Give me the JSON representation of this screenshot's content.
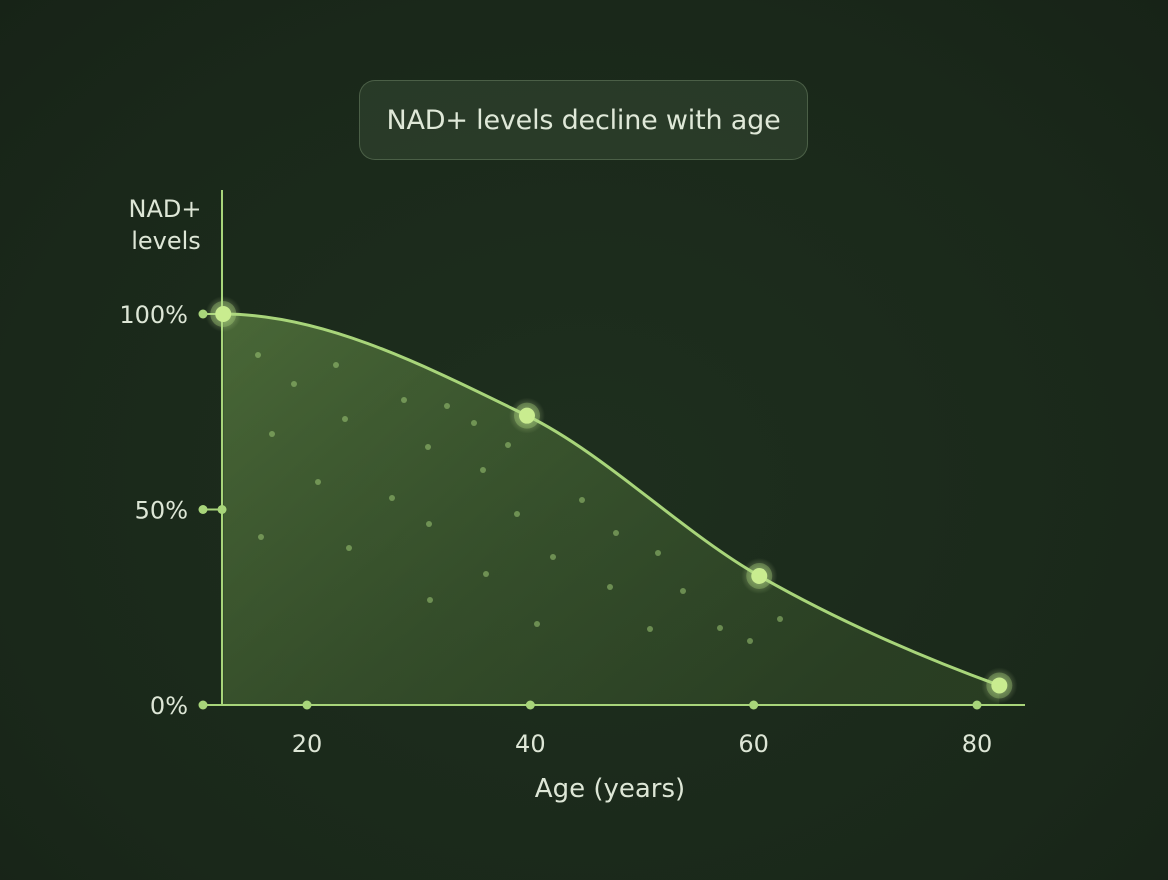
{
  "chart_data": {
    "type": "area",
    "title": "NAD+ levels decline with age",
    "ylabel_lines": [
      "NAD+",
      "levels"
    ],
    "xlabel": "Age (years)",
    "x_ticks": [
      {
        "value": 20,
        "label": "20"
      },
      {
        "value": 40,
        "label": "40"
      },
      {
        "value": 60,
        "label": "60"
      },
      {
        "value": 80,
        "label": "80"
      }
    ],
    "y_ticks": [
      {
        "value": 0,
        "label": "0%"
      },
      {
        "value": 50,
        "label": "50%"
      },
      {
        "value": 100,
        "label": "100%"
      }
    ],
    "xlim": [
      12.5,
      83
    ],
    "ylim": [
      0,
      100
    ],
    "series": [
      {
        "points": [
          {
            "x": 12.5,
            "y": 100
          },
          {
            "x": 39.7,
            "y": 74
          },
          {
            "x": 60.5,
            "y": 33
          },
          {
            "x": 82,
            "y": 5
          }
        ]
      }
    ],
    "colors": {
      "background": "#1b2a1b",
      "line": "#a8d57a",
      "marker": "#c9ec8f",
      "axis": "#a8d57a",
      "text": "#dde6d6"
    }
  }
}
